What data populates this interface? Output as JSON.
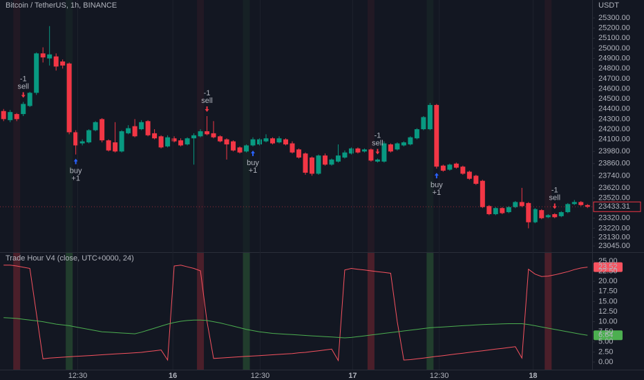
{
  "chart_data": [
    {
      "type": "candlestick",
      "title": "Bitcoin / TetherUS, 1h, BINANCE",
      "axis_unit": "USDT",
      "up_color": "#089981",
      "down_color": "#f23645",
      "open": [
        24380,
        24290,
        24350,
        24350,
        24430,
        24560,
        24950,
        24900,
        24920,
        24870,
        24850,
        24170,
        24060,
        24070,
        24190,
        24300,
        24090,
        24070,
        23980,
        24160,
        24230,
        24200,
        24280,
        24160,
        24130,
        24030,
        24110,
        24090,
        24050,
        24110,
        24130,
        24180,
        24160,
        24130,
        24100,
        24080,
        24020,
        23980,
        24040,
        24050,
        24080,
        24110,
        24070,
        24100,
        24060,
        24000,
        23960,
        23920,
        23760,
        23940,
        23850,
        23880,
        23920,
        23960,
        24010,
        23980,
        24000,
        23880,
        23880,
        24050,
        24000,
        24040,
        24050,
        24110,
        24200,
        24200,
        24440,
        23840,
        23800,
        23860,
        23830,
        23780,
        23740,
        23690,
        23440,
        23360,
        23420,
        23380,
        23430,
        23480,
        23470,
        23280,
        23400,
        23330,
        23360,
        23340,
        23380,
        23460,
        23480,
        23450
      ],
      "high": [
        24400,
        24390,
        24360,
        24470,
        24570,
        24960,
        25010,
        25220,
        24950,
        24890,
        24860,
        24190,
        24100,
        24200,
        24280,
        24310,
        24100,
        24270,
        24190,
        24240,
        24300,
        24290,
        24290,
        24200,
        24140,
        24140,
        24130,
        24110,
        24120,
        24160,
        24200,
        24330,
        24280,
        24140,
        24110,
        24090,
        24030,
        24050,
        24120,
        24110,
        24150,
        24120,
        24130,
        24110,
        24080,
        24010,
        23970,
        23930,
        23950,
        23960,
        23910,
        24050,
        23990,
        24020,
        24020,
        24010,
        24010,
        23910,
        24080,
        24060,
        24070,
        24080,
        24130,
        24210,
        24330,
        24460,
        24450,
        23850,
        23860,
        23870,
        23840,
        23790,
        23750,
        23700,
        23450,
        23430,
        23430,
        23440,
        23490,
        23620,
        23480,
        23420,
        23410,
        23360,
        23370,
        23390,
        23470,
        23500,
        23490,
        23460
      ],
      "low": [
        24280,
        24270,
        24280,
        24330,
        24420,
        24540,
        24860,
        24830,
        24780,
        24800,
        24150,
        23950,
        24040,
        24060,
        24180,
        24070,
        23980,
        23970,
        23970,
        24150,
        24120,
        24190,
        24130,
        24100,
        24010,
        24020,
        24070,
        24030,
        24040,
        23850,
        24120,
        24140,
        24110,
        24070,
        23900,
        23980,
        23960,
        23970,
        24030,
        24040,
        24070,
        24050,
        24060,
        24040,
        23960,
        23910,
        23750,
        23740,
        23750,
        23840,
        23840,
        23870,
        23910,
        23950,
        23960,
        23970,
        23880,
        23870,
        23870,
        23970,
        23990,
        24030,
        24040,
        24100,
        24190,
        24190,
        23810,
        23780,
        23790,
        23810,
        23750,
        23700,
        23650,
        23420,
        23350,
        23350,
        23360,
        23370,
        23420,
        23430,
        23220,
        23270,
        23310,
        23320,
        23320,
        23330,
        23370,
        23450,
        23440,
        23420
      ],
      "close": [
        24300,
        24370,
        24300,
        24450,
        24560,
        24950,
        24910,
        24940,
        24820,
        24830,
        24170,
        24040,
        24080,
        24190,
        24270,
        24090,
        23990,
        23980,
        24180,
        24210,
        24130,
        24270,
        24140,
        24110,
        24020,
        24120,
        24080,
        24040,
        24110,
        24140,
        24180,
        24150,
        24120,
        24080,
        24050,
        23990,
        23970,
        24040,
        24100,
        24100,
        24110,
        24060,
        24110,
        24050,
        23970,
        23920,
        23770,
        23760,
        23940,
        23850,
        23900,
        23940,
        23970,
        24010,
        23970,
        24000,
        23890,
        23900,
        24060,
        23980,
        24060,
        24070,
        24120,
        24200,
        24320,
        24440,
        23830,
        23790,
        23850,
        23820,
        23760,
        23710,
        23660,
        23430,
        23360,
        23420,
        23370,
        23430,
        23480,
        23440,
        23280,
        23410,
        23320,
        23350,
        23330,
        23380,
        23460,
        23480,
        23450,
        23433.31
      ],
      "xlim": [
        -0.55,
        89.5
      ],
      "ylim": [
        22984,
        25478
      ],
      "yticks": [
        {
          "value": 25300,
          "label": "25300.00"
        },
        {
          "value": 25200,
          "label": "25200.00"
        },
        {
          "value": 25100,
          "label": "25100.00"
        },
        {
          "value": 25000,
          "label": "25000.00"
        },
        {
          "value": 24900,
          "label": "24900.00"
        },
        {
          "value": 24800,
          "label": "24800.00"
        },
        {
          "value": 24700,
          "label": "24700.00"
        },
        {
          "value": 24600,
          "label": "24600.00"
        },
        {
          "value": 24500,
          "label": "24500.00"
        },
        {
          "value": 24400,
          "label": "24400.00"
        },
        {
          "value": 24300,
          "label": "24300.00"
        },
        {
          "value": 24200,
          "label": "24200.00"
        },
        {
          "value": 24100,
          "label": "24100.00"
        },
        {
          "value": 23980,
          "label": "23980.00"
        },
        {
          "value": 23860,
          "label": "23860.00"
        },
        {
          "value": 23740,
          "label": "23740.00"
        },
        {
          "value": 23620,
          "label": "23620.00"
        },
        {
          "value": 23520,
          "label": "23520.00"
        },
        {
          "value": 23320,
          "label": "23320.00"
        },
        {
          "value": 23220,
          "label": "23220.00"
        },
        {
          "value": 23130,
          "label": "23130.00"
        },
        {
          "value": 23045,
          "label": "23045.00"
        }
      ],
      "signals": [
        {
          "side": "sell",
          "size": "-1",
          "at": 3,
          "color": "#f23645"
        },
        {
          "side": "buy",
          "size": "+1",
          "at": 11,
          "color": "#2962ff"
        },
        {
          "side": "sell",
          "size": "-1",
          "at": 31,
          "color": "#f23645"
        },
        {
          "side": "buy",
          "size": "+1",
          "at": 38,
          "color": "#2962ff"
        },
        {
          "side": "sell",
          "size": "-1",
          "at": 57,
          "color": "#f23645"
        },
        {
          "side": "buy",
          "size": "+1",
          "at": 66,
          "color": "#2962ff"
        },
        {
          "side": "sell",
          "size": "-1",
          "at": 84,
          "color": "#f23645"
        }
      ]
    },
    {
      "type": "line",
      "title": "Trade Hour V4 (close, UTC+0000, 24)",
      "series": [
        {
          "color": "#f7525f",
          "values": [
            24,
            24,
            23.8,
            23.5,
            23.2,
            12,
            0.8,
            1.0,
            1.1,
            1.2,
            1.3,
            1.4,
            1.5,
            1.6,
            1.7,
            1.8,
            1.9,
            2.0,
            2.1,
            2.2,
            2.3,
            2.4,
            2.6,
            2.8,
            3.0,
            0.5,
            23.8,
            24,
            23.6,
            23.2,
            22.6,
            10,
            0.9,
            1.0,
            1.1,
            1.2,
            1.3,
            1.4,
            1.5,
            1.6,
            1.7,
            1.8,
            1.9,
            2.0,
            2.1,
            2.3,
            2.4,
            2.6,
            2.8,
            3.0,
            3.2,
            0.4,
            22.8,
            23.2,
            23.0,
            22.8,
            22.6,
            22.4,
            22.2,
            22.0,
            10,
            0.5,
            0.6,
            0.8,
            1.0,
            1.2,
            1.4,
            1.6,
            1.8,
            2.0,
            2.2,
            2.4,
            2.6,
            2.8,
            3.0,
            3.2,
            3.4,
            3.6,
            3.8,
            1.0,
            23.0,
            21.8,
            21.2,
            21.3,
            21.6,
            22.0,
            22.4,
            22.9,
            23.3,
            23.52
          ]
        },
        {
          "color": "#4caf50",
          "values": [
            11.0,
            10.9,
            10.8,
            10.6,
            10.4,
            10.2,
            10.0,
            9.7,
            9.4,
            9.2,
            9.0,
            8.7,
            8.4,
            8.1,
            7.8,
            7.5,
            7.4,
            7.3,
            7.2,
            7.1,
            7.0,
            7.4,
            7.9,
            8.4,
            8.9,
            9.4,
            9.8,
            10.1,
            10.3,
            10.4,
            10.4,
            10.3,
            10.0,
            9.7,
            9.3,
            8.9,
            8.5,
            8.1,
            7.8,
            7.5,
            7.3,
            7.1,
            7.0,
            6.9,
            6.8,
            6.7,
            6.6,
            6.5,
            6.4,
            6.3,
            6.2,
            6.1,
            6.0,
            6.1,
            6.3,
            6.5,
            6.7,
            6.9,
            7.1,
            7.3,
            7.5,
            7.7,
            7.9,
            8.1,
            8.3,
            8.5,
            8.6,
            8.7,
            8.8,
            8.9,
            9.0,
            9.1,
            9.2,
            9.3,
            9.35,
            9.4,
            9.45,
            9.5,
            9.5,
            9.5,
            9.3,
            9.0,
            8.7,
            8.4,
            8.1,
            7.8,
            7.5,
            7.2,
            6.9,
            6.64
          ]
        }
      ],
      "xlim": [
        -0.55,
        89.5
      ],
      "ylim": [
        -2.05,
        27.05
      ],
      "yticks": [
        {
          "value": 0,
          "label": "0.00"
        },
        {
          "value": 2.5,
          "label": "2.50"
        },
        {
          "value": 5,
          "label": "5.00"
        },
        {
          "value": 7.5,
          "label": "7.50"
        },
        {
          "value": 10,
          "label": "10.00"
        },
        {
          "value": 12.5,
          "label": "12.50"
        },
        {
          "value": 15,
          "label": "15.00"
        },
        {
          "value": 17.5,
          "label": "17.50"
        },
        {
          "value": 20,
          "label": "20.00"
        },
        {
          "value": 22.5,
          "label": "22.50"
        },
        {
          "value": 25,
          "label": "25.00"
        }
      ],
      "xticks": [
        {
          "value": 11.3,
          "label": "12:30"
        },
        {
          "value": 25.8,
          "label": "16"
        },
        {
          "value": 39.1,
          "label": "12:30"
        },
        {
          "value": 53.2,
          "label": "17"
        },
        {
          "value": 66.4,
          "label": "12:30"
        },
        {
          "value": 80.7,
          "label": "18"
        }
      ]
    }
  ]
}
